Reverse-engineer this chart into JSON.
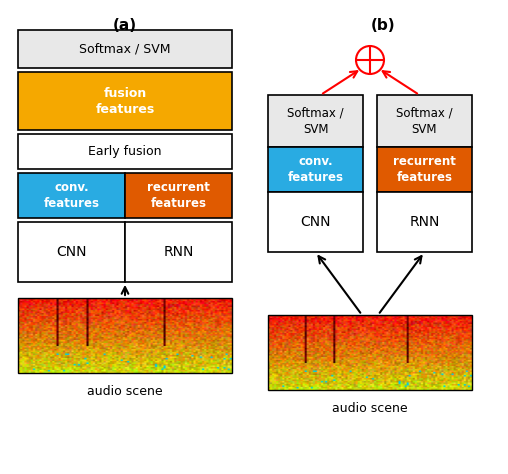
{
  "fig_width": 5.08,
  "fig_height": 4.74,
  "dpi": 100,
  "background": "#ffffff",
  "colors": {
    "softmax_bg": "#e8e8e8",
    "fusion_orange": "#f5a800",
    "early_fusion_bg": "#ffffff",
    "conv_blue": "#29abe2",
    "recurrent_orange": "#e05a00",
    "cnn_rnn_bg": "#ffffff",
    "box_edge": "#000000",
    "arrow_black": "#000000",
    "arrow_red": "#ff0000",
    "plus_red": "#ff0000"
  },
  "label_a": "(a)",
  "label_b": "(b)",
  "audio_scene_label": "audio scene",
  "diagram_a": {
    "softmax_text": "Softmax / SVM",
    "fusion_text": "fusion\nfeatures",
    "early_fusion_text": "Early fusion",
    "conv_text": "conv.\nfeatures",
    "recurrent_text": "recurrent\nfeatures",
    "cnn_text": "CNN",
    "rnn_text": "RNN"
  },
  "diagram_b": {
    "softmax_left_text": "Softmax /\nSVM",
    "softmax_right_text": "Softmax /\nSVM",
    "conv_text": "conv.\nfeatures",
    "recurrent_text": "recurrent\nfeatures",
    "cnn_text": "CNN",
    "rnn_text": "RNN"
  }
}
